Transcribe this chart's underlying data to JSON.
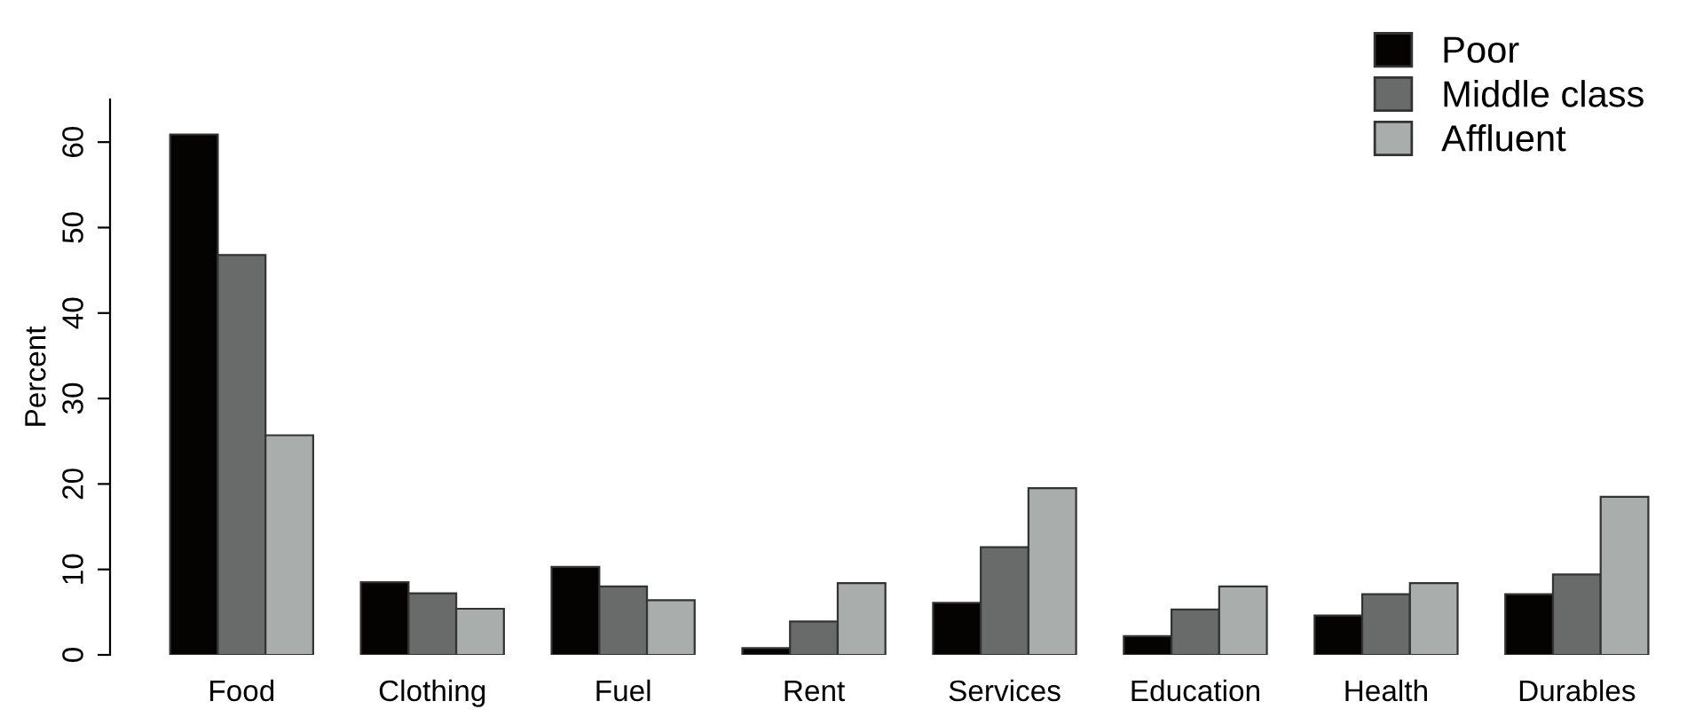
{
  "chart_data": {
    "type": "bar",
    "ylabel": "Percent",
    "categories": [
      "Food",
      "Clothing",
      "Fuel",
      "Rent",
      "Services",
      "Education",
      "Health",
      "Durables"
    ],
    "series": [
      {
        "name": "Poor",
        "color": "#050302",
        "values": [
          60.9,
          8.5,
          10.3,
          0.8,
          6.1,
          2.2,
          4.6,
          7.1
        ]
      },
      {
        "name": "Middle class",
        "color": "#686b6a",
        "values": [
          46.8,
          7.2,
          8.0,
          3.9,
          12.6,
          5.3,
          7.1,
          9.4
        ]
      },
      {
        "name": "Affluent",
        "color": "#a9adac",
        "values": [
          25.7,
          5.4,
          6.4,
          8.4,
          19.5,
          8.0,
          8.4,
          18.5
        ]
      }
    ],
    "ylim": [
      0,
      65
    ],
    "yticks": [
      0,
      10,
      20,
      30,
      40,
      50,
      60
    ],
    "grid": false,
    "legend": "top right"
  }
}
